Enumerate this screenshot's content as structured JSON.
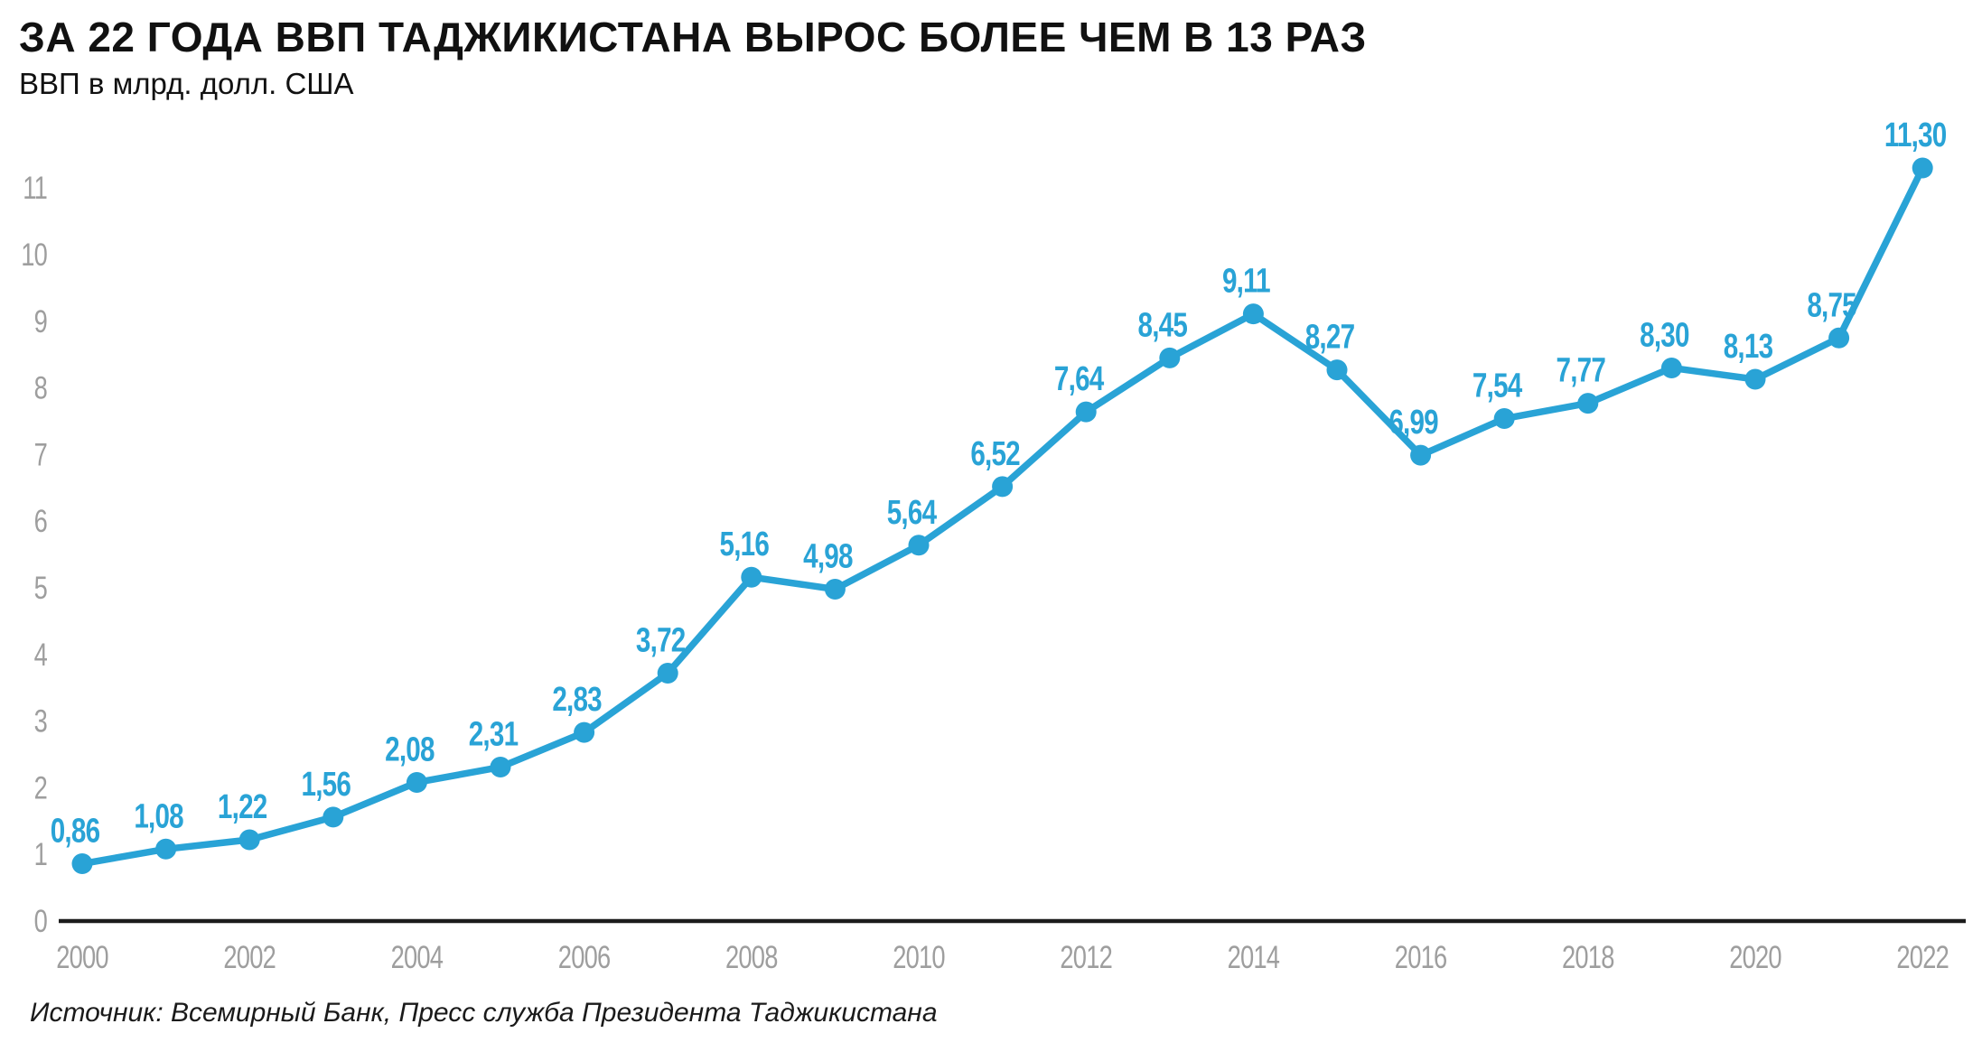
{
  "header": {
    "title": "ЗА 22 ГОДА ВВП ТАДЖИКИСТАНА ВЫРОС БОЛЕЕ ЧЕМ В 13 РАЗ",
    "subtitle": "ВВП в млрд. долл. США"
  },
  "footer": {
    "source": "Источник: Всемирный Банк, Пресс служба Президента Таджикистана"
  },
  "colors": {
    "line": "#29A3D6",
    "marker": "#29A3D6",
    "point_label": "#29A3D6",
    "axis": "#1c1c1c",
    "tick_text": "#9e9e9e",
    "title_text": "#111111"
  },
  "chart_data": {
    "type": "line",
    "title": "ЗА 22 ГОДА ВВП ТАДЖИКИСТАНА ВЫРОС БОЛЕЕ ЧЕМ В 13 РАЗ",
    "subtitle": "ВВП в млрд. долл. США",
    "xlabel": "",
    "ylabel": "ВВП в млрд. долл. США",
    "grid": false,
    "legend_position": "none",
    "x": [
      2000,
      2001,
      2002,
      2003,
      2004,
      2005,
      2006,
      2007,
      2008,
      2009,
      2010,
      2011,
      2012,
      2013,
      2014,
      2015,
      2016,
      2017,
      2018,
      2019,
      2020,
      2021,
      2022
    ],
    "values": [
      0.86,
      1.08,
      1.22,
      1.56,
      2.08,
      2.31,
      2.83,
      3.72,
      5.16,
      4.98,
      5.64,
      6.52,
      7.64,
      8.45,
      9.11,
      8.27,
      6.99,
      7.54,
      7.77,
      8.3,
      8.13,
      8.75,
      11.3
    ],
    "point_labels": [
      "0,86",
      "1,08",
      "1,22",
      "1,56",
      "2,08",
      "2,31",
      "2,83",
      "3,72",
      "5,16",
      "4,98",
      "5,64",
      "6,52",
      "7,64",
      "8,45",
      "9,11",
      "8,27",
      "6,99",
      "7,54",
      "7,77",
      "8,30",
      "8,13",
      "8,75",
      "11,30"
    ],
    "xticks": [
      2000,
      2002,
      2004,
      2006,
      2008,
      2010,
      2012,
      2014,
      2016,
      2018,
      2020,
      2022
    ],
    "yticks": [
      0,
      1,
      2,
      3,
      4,
      5,
      6,
      7,
      8,
      9,
      10,
      11
    ],
    "xlim": [
      2000,
      2022
    ],
    "ylim": [
      0,
      11.5
    ]
  }
}
